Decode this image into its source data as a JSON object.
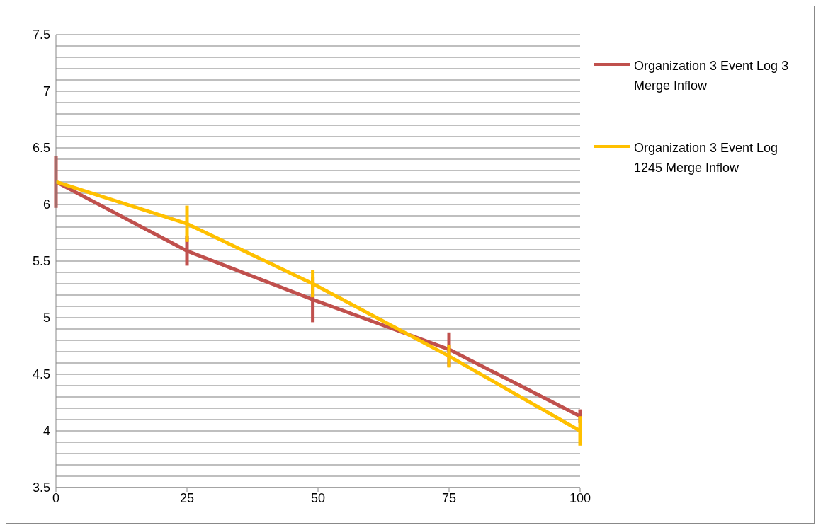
{
  "chart_data": {
    "type": "line",
    "x": [
      0,
      25,
      49,
      75,
      100
    ],
    "xlim": [
      0,
      100
    ],
    "xticks": [
      0,
      25,
      50,
      75,
      100
    ],
    "ylim": [
      3.5,
      7.5
    ],
    "yticks": [
      3.5,
      {
        "value": 3.6,
        "label": null
      },
      {
        "value": 3.7,
        "label": null
      },
      {
        "value": 3.8,
        "label": null
      },
      {
        "value": 3.9,
        "label": null
      },
      4,
      {
        "value": 4.1,
        "label": null
      },
      {
        "value": 4.2,
        "label": null
      },
      {
        "value": 4.3,
        "label": null
      },
      {
        "value": 4.4,
        "label": null
      },
      4.5,
      {
        "value": 4.6,
        "label": null
      },
      {
        "value": 4.7,
        "label": null
      },
      {
        "value": 4.8,
        "label": null
      },
      {
        "value": 4.9,
        "label": null
      },
      5,
      {
        "value": 5.1,
        "label": null
      },
      {
        "value": 5.2,
        "label": null
      },
      {
        "value": 5.3,
        "label": null
      },
      {
        "value": 5.4,
        "label": null
      },
      5.5,
      {
        "value": 5.6,
        "label": null
      },
      {
        "value": 5.7,
        "label": null
      },
      {
        "value": 5.8,
        "label": null
      },
      {
        "value": 5.9,
        "label": null
      },
      6,
      {
        "value": 6.1,
        "label": null
      },
      {
        "value": 6.2,
        "label": null
      },
      {
        "value": 6.3,
        "label": null
      },
      {
        "value": 6.4,
        "label": null
      },
      6.5,
      {
        "value": 6.6,
        "label": null
      },
      {
        "value": 6.7,
        "label": null
      },
      {
        "value": 6.8,
        "label": null
      },
      {
        "value": 6.9,
        "label": null
      },
      7,
      {
        "value": 7.1,
        "label": null
      },
      {
        "value": 7.2,
        "label": null
      },
      {
        "value": 7.3,
        "label": null
      },
      {
        "value": 7.4,
        "label": null
      },
      7.5
    ],
    "grid": "y",
    "legend": "right",
    "marker": "none",
    "line_style": "solid",
    "series": [
      {
        "name": "Organization 3 Event Log 3 Merge Inflow",
        "color": "#c0504d",
        "values": [
          6.2,
          5.59,
          5.16,
          4.72,
          4.13
        ],
        "errors": [
          0.23,
          0.13,
          0.2,
          0.15,
          0.06
        ]
      },
      {
        "name": "Organization 3 Event Log 1245 Merge Inflow",
        "color": "#ffc000",
        "values": [
          6.2,
          5.83,
          5.3,
          4.66,
          4.0
        ],
        "errors": [
          0,
          0.16,
          0.12,
          0.1,
          0.13
        ]
      }
    ]
  }
}
